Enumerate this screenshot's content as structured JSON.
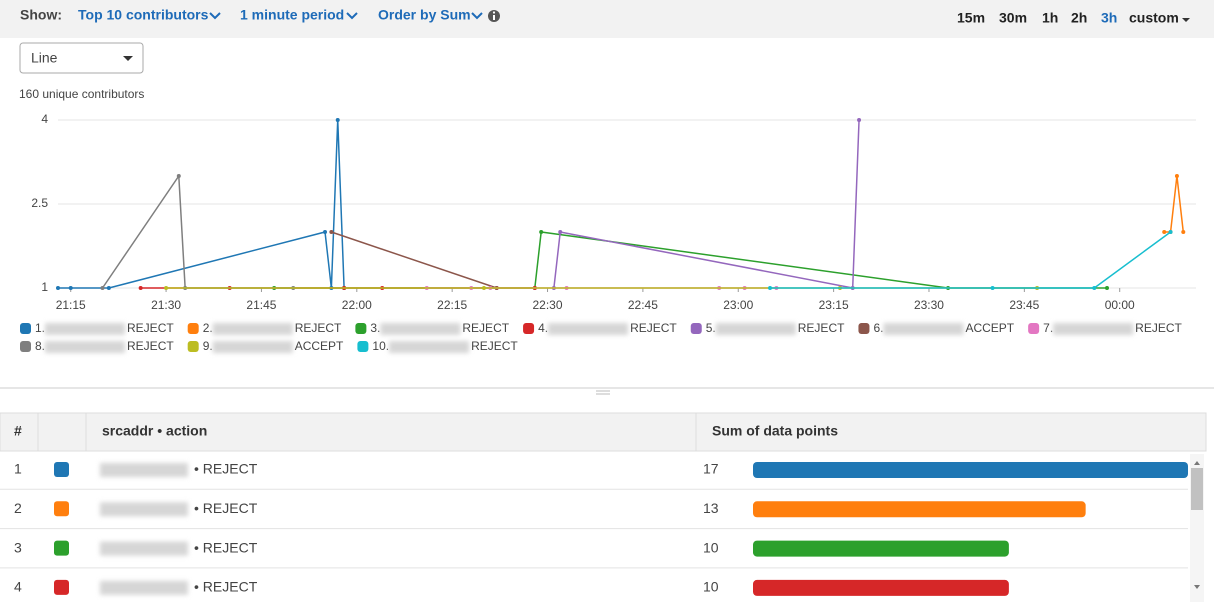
{
  "toolbar": {
    "show_label": "Show:",
    "contributors": "Top 10 contributors",
    "period": "1 minute period",
    "order": "Order by Sum",
    "ranges": [
      "15m",
      "30m",
      "1h",
      "2h",
      "3h",
      "custom"
    ],
    "active_range": "3h"
  },
  "view_select": "Line",
  "unique_contributors": "160 unique contributors",
  "chart_data": {
    "type": "line",
    "ylim": [
      1,
      4
    ],
    "yticks": [
      1,
      2.5,
      4
    ],
    "xlim": [
      "21:13",
      "00:12"
    ],
    "xticks": [
      "21:15",
      "21:30",
      "21:45",
      "22:00",
      "22:15",
      "22:30",
      "22:45",
      "23:00",
      "23:15",
      "23:30",
      "23:45",
      "00:00"
    ],
    "grid": true,
    "series": [
      {
        "name": "1.",
        "action": "REJECT",
        "color": "#1f77b4",
        "x": [
          "21:13",
          "21:15",
          "21:21",
          "21:55",
          "21:56",
          "21:57",
          "21:58"
        ],
        "values": [
          1,
          1,
          1,
          2,
          1,
          4,
          1
        ]
      },
      {
        "name": "2.",
        "action": "REJECT",
        "color": "#ff7f0e",
        "x": [
          "00:07",
          "00:08",
          "00:09",
          "00:10"
        ],
        "values": [
          2,
          2,
          3,
          2
        ]
      },
      {
        "name": "3.",
        "action": "REJECT",
        "color": "#2ca02c",
        "x": [
          "21:47",
          "21:58",
          "22:28",
          "22:29",
          "23:33",
          "23:58"
        ],
        "values": [
          1,
          1,
          1,
          2,
          1,
          1
        ]
      },
      {
        "name": "4.",
        "action": "REJECT",
        "color": "#d62728",
        "x": [
          "21:26",
          "21:40",
          "21:58",
          "22:04",
          "22:22",
          "22:28"
        ],
        "values": [
          1,
          1,
          1,
          1,
          1,
          1
        ]
      },
      {
        "name": "5.",
        "action": "REJECT",
        "color": "#9467bd",
        "x": [
          "22:31",
          "22:32",
          "23:18",
          "23:19"
        ],
        "values": [
          1,
          2,
          1,
          4
        ]
      },
      {
        "name": "6.",
        "action": "ACCEPT",
        "color": "#8c564b",
        "x": [
          "21:56",
          "22:22"
        ],
        "values": [
          2,
          1
        ]
      },
      {
        "name": "7.",
        "action": "REJECT",
        "color": "#e377c2",
        "x": [
          "22:11",
          "22:18",
          "22:21",
          "22:33",
          "22:57",
          "23:01",
          "23:06"
        ],
        "values": [
          1,
          1,
          1,
          1,
          1,
          1,
          1
        ]
      },
      {
        "name": "8.",
        "action": "REJECT",
        "color": "#7f7f7f",
        "x": [
          "21:20",
          "21:32",
          "21:33",
          "21:50"
        ],
        "values": [
          1,
          3,
          1,
          1
        ]
      },
      {
        "name": "9.",
        "action": "ACCEPT",
        "color": "#bcbd22",
        "x": [
          "21:30",
          "22:20",
          "23:16",
          "23:47"
        ],
        "values": [
          1,
          1,
          1,
          1
        ]
      },
      {
        "name": "10.",
        "action": "REJECT",
        "color": "#17becf",
        "x": [
          "23:05",
          "23:40",
          "23:56",
          "00:08"
        ],
        "values": [
          1,
          1,
          1,
          2
        ]
      }
    ]
  },
  "table": {
    "columns": [
      "#",
      "srcaddr • action",
      "Sum of data points"
    ],
    "rows": [
      {
        "rank": 1,
        "color": "#1f77b4",
        "action": "• REJECT",
        "sum": 17
      },
      {
        "rank": 2,
        "color": "#ff7f0e",
        "action": "• REJECT",
        "sum": 13
      },
      {
        "rank": 3,
        "color": "#2ca02c",
        "action": "• REJECT",
        "sum": 10
      },
      {
        "rank": 4,
        "color": "#d62728",
        "action": "• REJECT",
        "sum": 10
      }
    ]
  }
}
